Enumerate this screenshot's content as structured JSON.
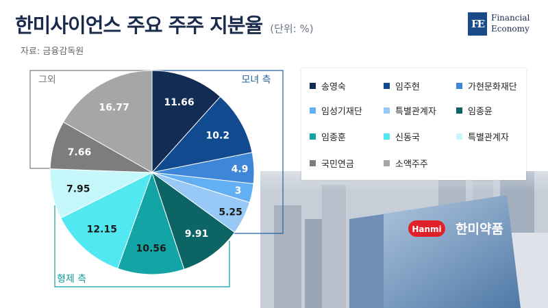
{
  "title": "한미사이언스 주요 주주 지분율",
  "unit": "(단위: %)",
  "source": "자료: 금융감독원",
  "logo": {
    "mark": "FE",
    "line1": "Financial",
    "line2": "Economy"
  },
  "photo": {
    "signage_logo": "Hanmi",
    "signage_name": "한미약품"
  },
  "groups": [
    {
      "label": "모녀 측",
      "color": "#1f5fa0"
    },
    {
      "label": "그외",
      "color": "#7a7a7a"
    },
    {
      "label": "형제 측",
      "color": "#0e9b9b"
    }
  ],
  "chart_data": {
    "type": "pie",
    "title": "한미사이언스 주요 주주 지분율",
    "unit": "%",
    "slices": [
      {
        "name": "송영숙",
        "value": 11.66,
        "color": "#132c53",
        "label_color": "#ffffff"
      },
      {
        "name": "임주현",
        "value": 10.2,
        "color": "#114a8f",
        "label_color": "#ffffff"
      },
      {
        "name": "가현문화재단",
        "value": 4.9,
        "color": "#3f86d8",
        "label_color": "#ffffff"
      },
      {
        "name": "임성기재단",
        "value": 3,
        "color": "#62b0f3",
        "label_color": "#ffffff"
      },
      {
        "name": "특별관계자",
        "value": 5.25,
        "color": "#97c8f6",
        "label_color": "#1a1a1a"
      },
      {
        "name": "임종윤",
        "value": 9.91,
        "color": "#0c6464",
        "label_color": "#ffffff"
      },
      {
        "name": "임종훈",
        "value": 10.56,
        "color": "#13a5a5",
        "label_color": "#1a1a1a"
      },
      {
        "name": "신동국",
        "value": 12.15,
        "color": "#52e8f2",
        "label_color": "#1a1a1a"
      },
      {
        "name": "특별관계자",
        "value": 7.95,
        "color": "#c6f8fb",
        "label_color": "#1a1a1a"
      },
      {
        "name": "국민연금",
        "value": 7.66,
        "color": "#7d7d7d",
        "label_color": "#ffffff"
      },
      {
        "name": "소액주주",
        "value": 16.77,
        "color": "#a6a6a6",
        "label_color": "#ffffff"
      }
    ],
    "legend_position": "right"
  }
}
